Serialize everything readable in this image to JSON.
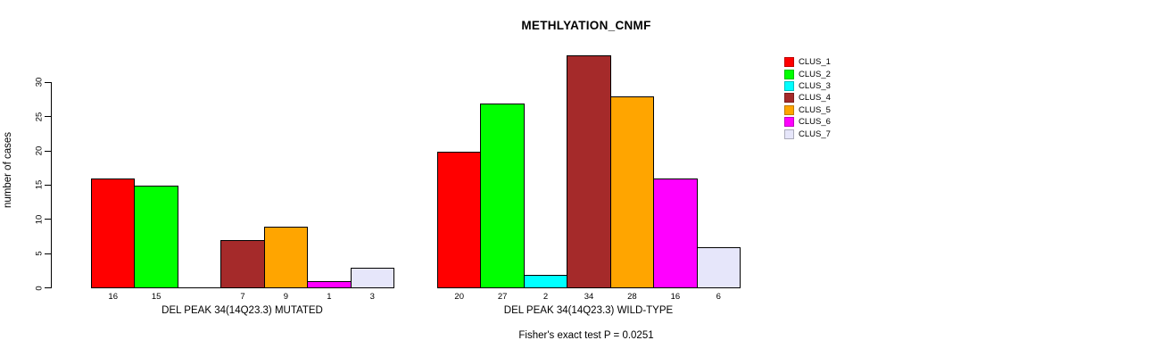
{
  "chart_data": {
    "type": "bar",
    "title": "METHLYATION_CNMF",
    "ylabel": "number of cases",
    "xlabel": "",
    "annotation": "Fisher's exact test P = 0.0251",
    "categories": [
      "DEL PEAK 34(14Q23.3) MUTATED",
      "DEL PEAK 34(14Q23.3) WILD-TYPE"
    ],
    "series": [
      {
        "name": "CLUS_1",
        "color": "#ff0000",
        "values": [
          16,
          20
        ]
      },
      {
        "name": "CLUS_2",
        "color": "#00ff00",
        "values": [
          15,
          27
        ]
      },
      {
        "name": "CLUS_3",
        "color": "#00ffff",
        "values": [
          0,
          2
        ]
      },
      {
        "name": "CLUS_4",
        "color": "#a52a2a",
        "values": [
          7,
          34
        ]
      },
      {
        "name": "CLUS_5",
        "color": "#ffa500",
        "values": [
          9,
          28
        ]
      },
      {
        "name": "CLUS_6",
        "color": "#ff00ff",
        "values": [
          1,
          16
        ]
      },
      {
        "name": "CLUS_7",
        "color": "#e6e6fa",
        "values": [
          3,
          6
        ]
      }
    ],
    "bar_value_labels": [
      [
        "16",
        "15",
        "",
        "7",
        "9",
        "1",
        "3"
      ],
      [
        "20",
        "27",
        "2",
        "34",
        "28",
        "16",
        "6"
      ]
    ],
    "yticks": [
      0,
      5,
      10,
      15,
      20,
      25,
      30
    ],
    "ylim": [
      0,
      30
    ],
    "grid": false,
    "legend_position": "right",
    "bar_border_color": "#000000",
    "background_color": "#ffffff"
  }
}
